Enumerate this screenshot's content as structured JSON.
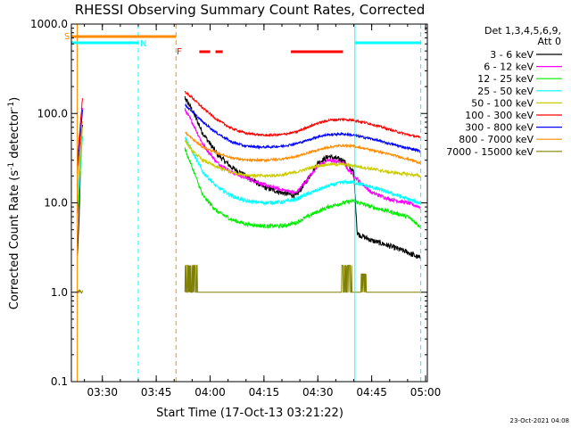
{
  "chart_data": {
    "type": "line",
    "title": "RHESSI Observing Summary Count Rates, Corrected",
    "xlabel": "Start Time (17-Oct-13 03:21:22)",
    "ylabel_main": "Corrected Count Rate (s",
    "ylabel_sup1": "-1",
    "ylabel_mid": " detector",
    "ylabel_sup2": "-1",
    "ylabel_end": ")",
    "footer": "23-Oct-2021 04:08",
    "y_scale": "log",
    "ylim": [
      0.1,
      1000.0
    ],
    "xlim": [
      "03:21:22",
      "05:00:30"
    ],
    "y_ticks": [
      {
        "value": 0.1,
        "label": "0.1"
      },
      {
        "value": 1.0,
        "label": "1.0"
      },
      {
        "value": 10.0,
        "label": "10.0"
      },
      {
        "value": 100.0,
        "label": "100.0"
      },
      {
        "value": 1000.0,
        "label": "1000.0"
      }
    ],
    "x_ticks": [
      {
        "value": "03:30",
        "label": "03:30"
      },
      {
        "value": "03:45",
        "label": "03:45"
      },
      {
        "value": "04:00",
        "label": "04:00"
      },
      {
        "value": "04:15",
        "label": "04:15"
      },
      {
        "value": "04:30",
        "label": "04:30"
      },
      {
        "value": "04:45",
        "label": "04:45"
      },
      {
        "value": "05:00",
        "label": "05:00"
      }
    ],
    "legend": {
      "placement": "top-right",
      "header_line1": "Det 1,3,4,5,6,9,",
      "header_line2": "Att 0",
      "entries": [
        {
          "label": "3 - 6 keV",
          "color": "#000000"
        },
        {
          "label": "6 - 12 keV",
          "color": "#ff00ff"
        },
        {
          "label": "12 - 25 keV",
          "color": "#00ee00"
        },
        {
          "label": "25 - 50 keV",
          "color": "#00ffff"
        },
        {
          "label": "50 - 100 keV",
          "color": "#cccc00"
        },
        {
          "label": "100 - 300 keV",
          "color": "#ff0000"
        },
        {
          "label": "300 - 800 keV",
          "color": "#0000ff"
        },
        {
          "label": "800 - 7000 keV",
          "color": "#ff8c00"
        },
        {
          "label": "7000 - 15000 keV",
          "color": "#808000"
        }
      ]
    },
    "flags": [
      {
        "label": "S",
        "color": "#ff8c00",
        "segments": [
          [
            "03:21:22",
            "03:50:30"
          ]
        ]
      },
      {
        "label": "N",
        "color": "#00ffff",
        "segments": [
          [
            "03:21:22",
            "03:40:00"
          ],
          [
            "04:40:20",
            "04:58:40"
          ]
        ]
      },
      {
        "label": "F",
        "color": "#ff0000",
        "segments": [
          [
            "03:57:00",
            "04:00:00"
          ],
          [
            "04:01:30",
            "04:03:30"
          ],
          [
            "04:22:30",
            "04:37:00"
          ]
        ]
      }
    ],
    "event_lines": [
      {
        "time": "03:21:22",
        "color": "#00ffff",
        "style": "solid"
      },
      {
        "time": "03:23:00",
        "color": "#ff8c00",
        "style": "solid"
      },
      {
        "time": "03:40:00",
        "color": "#00ffff",
        "style": "dashed"
      },
      {
        "time": "03:50:30",
        "color": "#ff8c00",
        "style": "dashed"
      },
      {
        "time": "04:40:20",
        "color": "#00ffff",
        "style": "solid"
      },
      {
        "time": "04:58:40",
        "color": "#00ffff",
        "style": "dashed"
      }
    ],
    "gap": [
      "03:24:30",
      "03:53:00"
    ],
    "series": [
      {
        "name": "3 - 6 keV",
        "color": "#000000",
        "noise": 0.07,
        "pre": {
          "x": [
            "03:23:00",
            "03:23:30",
            "03:24:00",
            "03:24:30"
          ],
          "y": [
            2.5,
            6.0,
            40.0,
            80.0
          ]
        },
        "x": [
          "03:53:00",
          "03:55:00",
          "03:58:00",
          "04:02:00",
          "04:06:00",
          "04:10:00",
          "04:15:00",
          "04:20:00",
          "04:24:00",
          "04:27:00",
          "04:30:00",
          "04:33:00",
          "04:37:00",
          "04:40:00",
          "04:41:00",
          "04:45:00",
          "04:50:00",
          "04:55:00",
          "04:58:30"
        ],
        "y": [
          150,
          110,
          60,
          35,
          25,
          20,
          15,
          13,
          12,
          18,
          28,
          33,
          30,
          22,
          4.5,
          3.8,
          3.3,
          2.8,
          2.4
        ]
      },
      {
        "name": "6 - 12 keV",
        "color": "#ff00ff",
        "noise": 0.05,
        "pre": {
          "x": [
            "03:23:00",
            "03:23:30",
            "03:24:00",
            "03:24:30"
          ],
          "y": [
            8.0,
            20.0,
            60.0,
            120.0
          ]
        },
        "x": [
          "03:53:00",
          "03:55:00",
          "03:58:00",
          "04:02:00",
          "04:06:00",
          "04:10:00",
          "04:15:00",
          "04:20:00",
          "04:24:00",
          "04:27:00",
          "04:30:00",
          "04:33:00",
          "04:37:00",
          "04:40:00",
          "04:45:00",
          "04:50:00",
          "04:55:00",
          "04:58:30"
        ],
        "y": [
          110,
          80,
          45,
          28,
          22,
          19,
          16,
          14,
          13,
          18,
          26,
          30,
          28,
          20,
          13,
          11,
          10,
          9
        ]
      },
      {
        "name": "12 - 25 keV",
        "color": "#00ee00",
        "noise": 0.05,
        "pre": {
          "x": [
            "03:23:00",
            "03:23:30",
            "03:24:00",
            "03:24:30"
          ],
          "y": [
            6.0,
            12.0,
            30.0,
            60.0
          ]
        },
        "x": [
          "03:53:00",
          "03:55:00",
          "03:58:00",
          "04:02:00",
          "04:06:00",
          "04:10:00",
          "04:15:00",
          "04:20:00",
          "04:24:00",
          "04:27:00",
          "04:30:00",
          "04:33:00",
          "04:37:00",
          "04:40:00",
          "04:45:00",
          "04:50:00",
          "04:55:00",
          "04:58:30"
        ],
        "y": [
          40,
          25,
          12,
          8,
          6.5,
          5.8,
          5.5,
          5.5,
          6,
          7,
          8,
          9,
          10,
          10.5,
          9,
          8,
          7,
          5.5
        ]
      },
      {
        "name": "25 - 50 keV",
        "color": "#00ffff",
        "noise": 0.05,
        "pre": {
          "x": [
            "03:23:00",
            "03:23:30",
            "03:24:00",
            "03:24:30"
          ],
          "y": [
            10.0,
            18.0,
            35.0,
            60.0
          ]
        },
        "x": [
          "03:53:00",
          "03:55:00",
          "03:58:00",
          "04:02:00",
          "04:06:00",
          "04:10:00",
          "04:15:00",
          "04:20:00",
          "04:24:00",
          "04:27:00",
          "04:30:00",
          "04:33:00",
          "04:37:00",
          "04:40:00",
          "04:45:00",
          "04:50:00",
          "04:55:00",
          "04:58:30"
        ],
        "y": [
          55,
          38,
          22,
          15,
          12,
          10.5,
          10,
          10.2,
          11,
          12.5,
          14,
          15.5,
          17,
          17,
          15,
          13,
          11,
          10
        ]
      },
      {
        "name": "50 - 100 keV",
        "color": "#cccc00",
        "noise": 0.04,
        "pre": {
          "x": [
            "03:23:00",
            "03:23:30",
            "03:24:00",
            "03:24:30"
          ],
          "y": [
            14.0,
            22.0,
            40.0,
            70.0
          ]
        },
        "x": [
          "03:53:00",
          "03:55:00",
          "03:58:00",
          "04:02:00",
          "04:06:00",
          "04:10:00",
          "04:15:00",
          "04:20:00",
          "04:24:00",
          "04:27:00",
          "04:30:00",
          "04:33:00",
          "04:37:00",
          "04:40:00",
          "04:45:00",
          "04:50:00",
          "04:55:00",
          "04:58:30"
        ],
        "y": [
          50,
          38,
          30,
          25,
          22,
          20.5,
          20,
          20.5,
          22,
          24,
          26,
          27,
          27,
          26,
          24,
          22,
          21,
          20
        ]
      },
      {
        "name": "100 - 300 keV",
        "color": "#ff0000",
        "noise": 0.03,
        "pre": {
          "x": [
            "03:23:00",
            "03:23:30",
            "03:24:00",
            "03:24:30"
          ],
          "y": [
            30.0,
            50.0,
            90.0,
            150.0
          ]
        },
        "x": [
          "03:53:00",
          "03:55:00",
          "03:58:00",
          "04:02:00",
          "04:06:00",
          "04:10:00",
          "04:15:00",
          "04:20:00",
          "04:24:00",
          "04:27:00",
          "04:30:00",
          "04:33:00",
          "04:37:00",
          "04:40:00",
          "04:45:00",
          "04:50:00",
          "04:55:00",
          "04:58:30"
        ],
        "y": [
          175,
          150,
          115,
          85,
          68,
          60,
          57,
          58,
          62,
          70,
          78,
          84,
          86,
          84,
          76,
          66,
          58,
          54
        ]
      },
      {
        "name": "300 - 800 keV",
        "color": "#0000ff",
        "noise": 0.03,
        "pre": {
          "x": [
            "03:23:00",
            "03:23:30",
            "03:24:00",
            "03:24:30"
          ],
          "y": [
            25.0,
            40.0,
            70.0,
            110.0
          ]
        },
        "x": [
          "03:53:00",
          "03:55:00",
          "03:58:00",
          "04:02:00",
          "04:06:00",
          "04:10:00",
          "04:15:00",
          "04:20:00",
          "04:24:00",
          "04:27:00",
          "04:30:00",
          "04:33:00",
          "04:37:00",
          "04:40:00",
          "04:45:00",
          "04:50:00",
          "04:55:00",
          "04:58:30"
        ],
        "y": [
          125,
          105,
          80,
          60,
          48,
          43,
          42,
          43,
          46,
          50,
          55,
          58,
          59,
          57,
          52,
          46,
          41,
          38
        ]
      },
      {
        "name": "800 - 7000 keV",
        "color": "#ff8c00",
        "noise": 0.03,
        "pre": {
          "x": [
            "03:23:00",
            "03:23:30",
            "03:24:00",
            "03:24:30"
          ],
          "y": [
            20.0,
            32.0,
            55.0,
            85.0
          ]
        },
        "x": [
          "03:53:00",
          "03:55:00",
          "03:58:00",
          "04:02:00",
          "04:06:00",
          "04:10:00",
          "04:15:00",
          "04:20:00",
          "04:24:00",
          "04:27:00",
          "04:30:00",
          "04:33:00",
          "04:37:00",
          "04:40:00",
          "04:45:00",
          "04:50:00",
          "04:55:00",
          "04:58:30"
        ],
        "y": [
          62,
          52,
          42,
          36,
          32,
          30,
          30,
          31,
          33,
          36,
          39,
          42,
          44,
          43,
          39,
          35,
          31,
          28
        ]
      },
      {
        "name": "7000 - 15000 keV",
        "color": "#808000",
        "noise": 0.0,
        "pre": {
          "x": [
            "03:23:00",
            "03:23:30",
            "03:24:00",
            "03:24:30"
          ],
          "y": [
            1.0,
            1.0,
            1.0,
            1.0
          ]
        },
        "x": [
          "03:53:00",
          "04:58:30"
        ],
        "y": [
          1.0,
          1.0
        ],
        "bursts": [
          [
            "03:53:00",
            "03:56:30",
            2.0
          ],
          [
            "04:36:30",
            "04:39:30",
            2.0
          ],
          [
            "04:42:00",
            "04:43:30",
            1.6
          ]
        ]
      }
    ]
  }
}
